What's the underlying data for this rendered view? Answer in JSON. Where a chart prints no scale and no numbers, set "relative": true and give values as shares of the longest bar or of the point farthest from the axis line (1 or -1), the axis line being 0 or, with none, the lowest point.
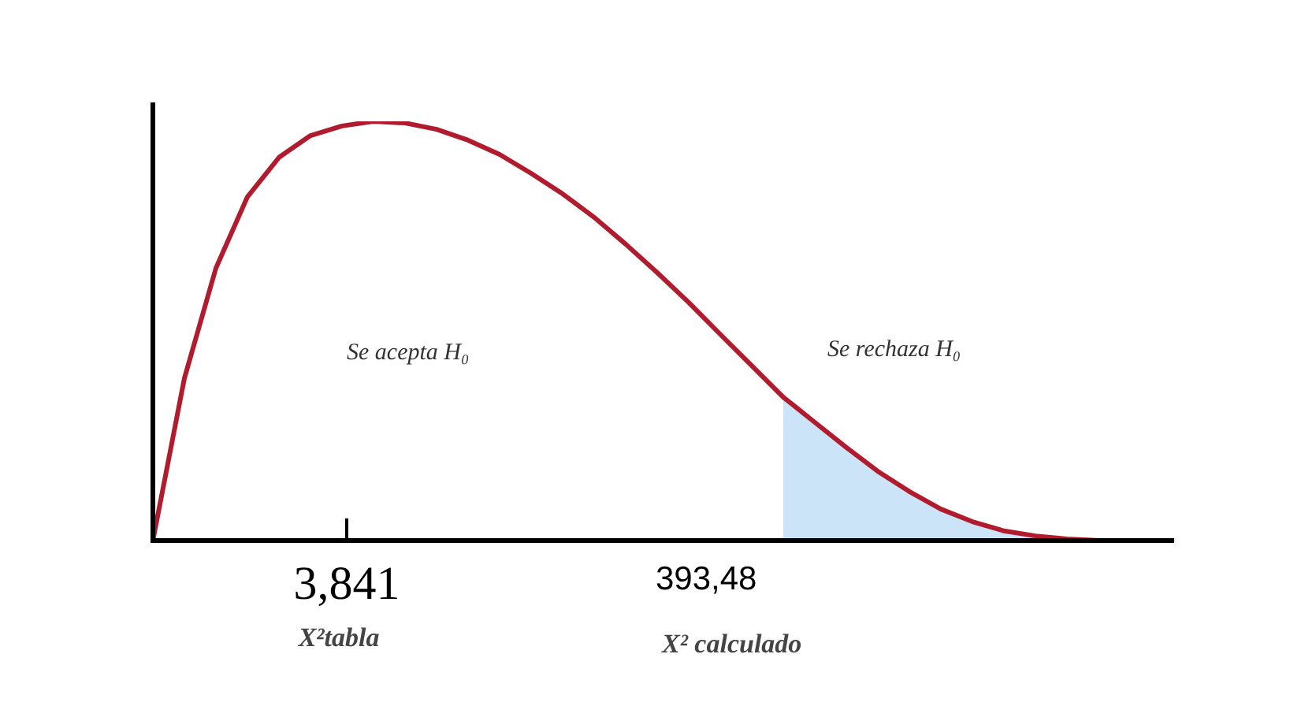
{
  "chart_data": {
    "type": "line",
    "relative": true,
    "categories": [
      null,
      null,
      null,
      null,
      null,
      null,
      null,
      null,
      null,
      null,
      null,
      null,
      null,
      null,
      null,
      null,
      null,
      null,
      null,
      null,
      null,
      null,
      null,
      null,
      null,
      null,
      null,
      null,
      null,
      null,
      null,
      null,
      null
    ],
    "series": [
      {
        "color": "#b01c2e",
        "values": [
          0,
          0.387,
          0.65,
          0.82,
          0.914,
          0.966,
          0.989,
          1,
          0.996,
          0.981,
          0.955,
          0.921,
          0.876,
          0.827,
          0.771,
          0.707,
          0.639,
          0.568,
          0.492,
          0.417,
          0.342,
          0.282,
          0.222,
          0.165,
          0.117,
          0.075,
          0.045,
          0.023,
          0.011,
          0.004,
          0,
          0,
          0
        ]
      },
      {
        "type": "area",
        "color": "#cce4f7",
        "values": [
          null,
          null,
          null,
          null,
          null,
          null,
          null,
          null,
          null,
          null,
          null,
          null,
          null,
          null,
          null,
          null,
          null,
          null,
          null,
          null,
          0.342,
          0.282,
          0.222,
          0.165,
          0.117,
          0.075,
          0.045,
          0.023,
          0.011,
          0.004,
          0,
          null,
          null
        ]
      }
    ],
    "annotations": [
      "Se acepta H₀",
      "Se rechaza H₀",
      "3,841",
      "X²tabla",
      "393,48",
      "X² calculado"
    ],
    "legend": false
  }
}
